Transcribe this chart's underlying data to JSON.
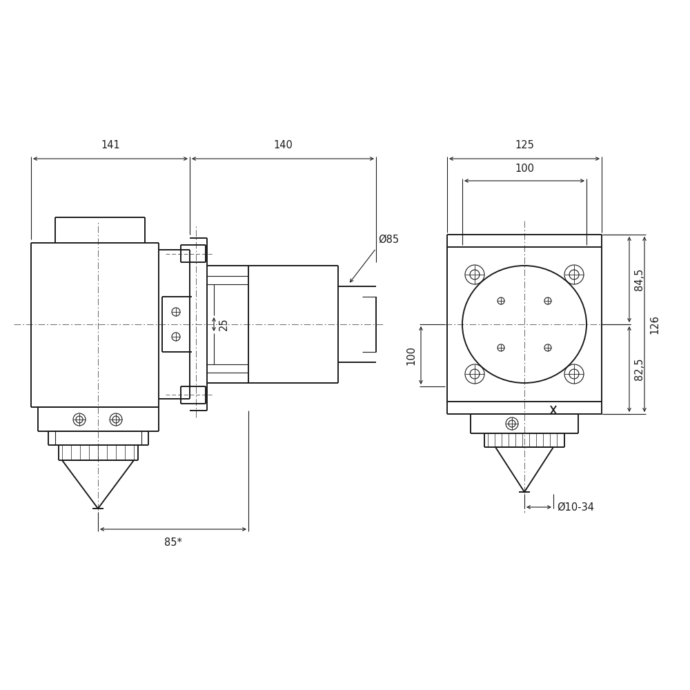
{
  "bg_color": "#ffffff",
  "line_color": "#1a1a1a",
  "centerline_color": "#666666",
  "fig_size": [
    10,
    10
  ],
  "dpi": 100,
  "annotations": {
    "dim_141": "141",
    "dim_140": "140",
    "dim_25": "25",
    "dim_85_diam": "Ø85",
    "dim_100_vert": "100",
    "dim_85_star": "85*",
    "dim_125": "125",
    "dim_100_horiz": "100",
    "dim_84_5": "84,5",
    "dim_82_5": "82,5",
    "dim_126": "126",
    "dim_10_34": "Ø10-34"
  }
}
